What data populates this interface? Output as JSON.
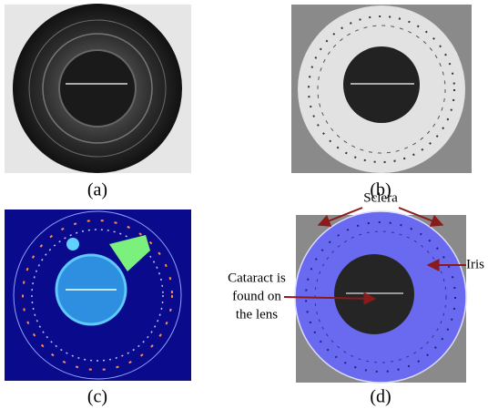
{
  "panels": [
    {
      "label": "(a)"
    },
    {
      "label": "(b)"
    },
    {
      "label": "(c)"
    },
    {
      "label": "(d)"
    }
  ],
  "annotations": {
    "sclera": "Sclera",
    "iris": "Iris",
    "cataract": [
      "Cataract is",
      "found on",
      "the lens"
    ]
  }
}
